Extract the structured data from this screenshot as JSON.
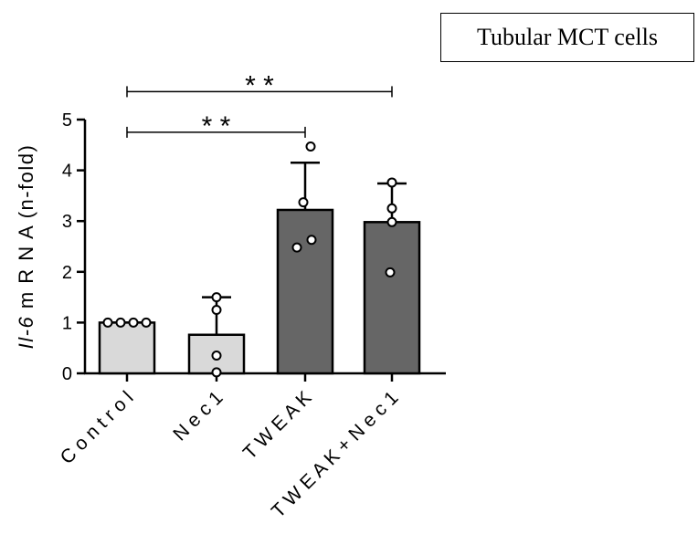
{
  "chart_data": {
    "type": "bar",
    "annotation_box": "Tubular MCT cells",
    "ylabel_italic": "Il-6",
    "ylabel_rest": " m R N A  (n-fold)",
    "categories": [
      "Control",
      "Nec1",
      "TWEAK",
      "TWEAK + Nec1"
    ],
    "category_labels": [
      "C o n t r o l",
      "N e c 1",
      "T W E A K",
      "T W E A K  +  N e c 1"
    ],
    "values": [
      1.0,
      0.76,
      3.22,
      2.98
    ],
    "error_upper": [
      1.0,
      1.5,
      4.15,
      3.74
    ],
    "points": [
      [
        1.0,
        1.0,
        1.0,
        1.0
      ],
      [
        1.5,
        1.25,
        0.35,
        0.02
      ],
      [
        4.47,
        3.37,
        2.63,
        2.48
      ],
      [
        3.76,
        3.25,
        2.98,
        1.99
      ]
    ],
    "bar_colors": [
      "#d9d9d9",
      "#d9d9d9",
      "#666666",
      "#666666"
    ],
    "ylim": [
      0,
      5
    ],
    "yticks": [
      "0",
      "1",
      "2",
      "3",
      "4",
      "5"
    ],
    "significance": [
      {
        "from": "Control",
        "to": "TWEAK",
        "label": "* *",
        "level": 4.75
      },
      {
        "from": "Control",
        "to": "TWEAK + Nec1",
        "label": "* *",
        "level": 5.55
      }
    ]
  }
}
